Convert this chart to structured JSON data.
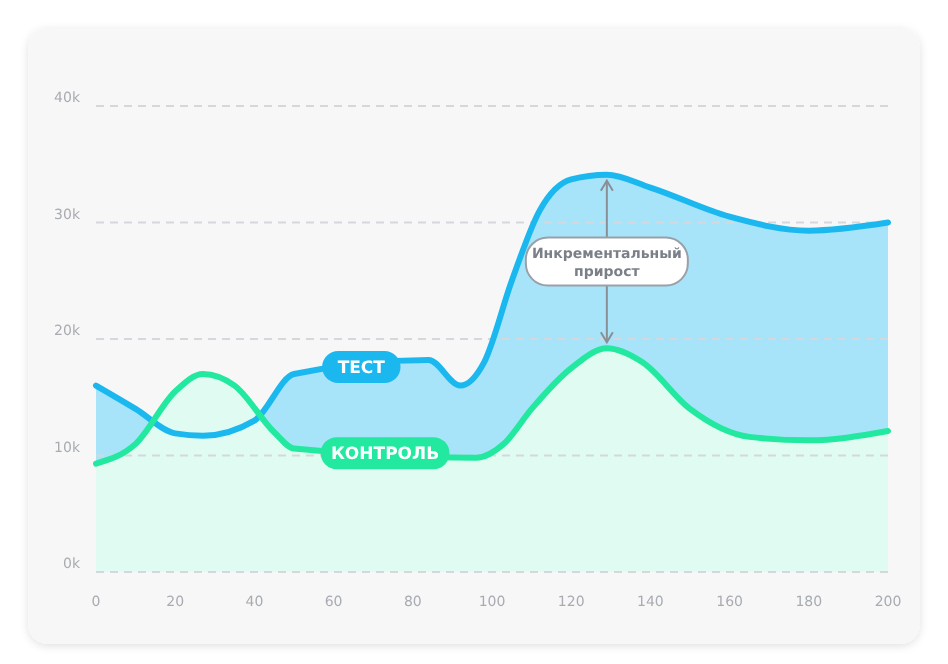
{
  "chart_data": {
    "type": "area",
    "xlim": [
      0,
      200
    ],
    "xticks": [
      0,
      20,
      40,
      60,
      80,
      100,
      120,
      140,
      160,
      180,
      200
    ],
    "ylim": [
      0,
      40
    ],
    "yticks": [
      {
        "value": 0,
        "label": "0k"
      },
      {
        "value": 10,
        "label": "10k"
      },
      {
        "value": 20,
        "label": "20k"
      },
      {
        "value": 30,
        "label": "30k"
      },
      {
        "value": 40,
        "label": "40k"
      }
    ],
    "grid": "y",
    "line_style": "solid",
    "marker": "none",
    "series": [
      {
        "name": "ТЕСТ",
        "color": "#1ab8ef",
        "x": [
          0,
          10,
          20,
          27,
          40,
          50,
          84,
          92,
          98,
          105,
          112,
          120,
          129,
          140,
          160,
          180,
          200
        ],
        "values": [
          16,
          14,
          11.9,
          11.7,
          13,
          17,
          18.2,
          16,
          18,
          25,
          31,
          33.7,
          34.1,
          33,
          30.5,
          29.3,
          30
        ]
      },
      {
        "name": "КОНТРОЛЬ",
        "color": "#22e8a0",
        "x": [
          0,
          10,
          20,
          27,
          35,
          45,
          50,
          96,
          103,
          110,
          120,
          129,
          138,
          150,
          165,
          180,
          200
        ],
        "values": [
          9.3,
          11,
          15.5,
          17,
          16,
          12,
          10.6,
          9.8,
          11,
          14,
          17.5,
          19.2,
          18,
          14,
          11.6,
          11.3,
          12.1
        ]
      }
    ],
    "annotations": [
      "Инкрементальный прирост"
    ]
  }
}
